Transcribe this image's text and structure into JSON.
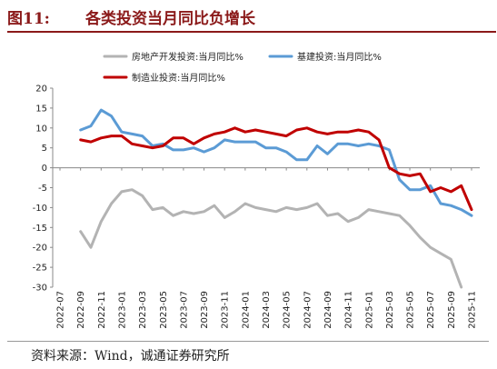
{
  "figure": {
    "number": "图11:",
    "title": "各类投资当月同比负增长",
    "source": "资料来源：Wind，诚通证券研究所"
  },
  "chart_data": {
    "type": "line",
    "title": "各类投资当月同比负增长",
    "xlabel": "",
    "ylabel": "",
    "ylim": [
      -30,
      20
    ],
    "yticks": [
      -30,
      -25,
      -20,
      -15,
      -10,
      -5,
      0,
      5,
      10,
      15,
      20
    ],
    "xticks": [
      "2022-07",
      "2022-09",
      "2022-11",
      "2023-01",
      "2023-03",
      "2023-05",
      "2023-07",
      "2023-09",
      "2023-11",
      "2024-01",
      "2024-03",
      "2024-05",
      "2024-07",
      "2024-09",
      "2024-11",
      "2025-01",
      "2025-03",
      "2025-05",
      "2025-07",
      "2025-09",
      "2025-11"
    ],
    "x": [
      "2022-09",
      "2022-10",
      "2022-11",
      "2022-12",
      "2023-01",
      "2023-02",
      "2023-03",
      "2023-04",
      "2023-05",
      "2023-06",
      "2023-07",
      "2023-08",
      "2023-09",
      "2023-10",
      "2023-11",
      "2023-12",
      "2024-01",
      "2024-02",
      "2024-03",
      "2024-04",
      "2024-05",
      "2024-06",
      "2024-07",
      "2024-08",
      "2024-09",
      "2024-10",
      "2024-11",
      "2024-12",
      "2025-01",
      "2025-02",
      "2025-03",
      "2025-04",
      "2025-05",
      "2025-06",
      "2025-07",
      "2025-08",
      "2025-09",
      "2025-10",
      "2025-11"
    ],
    "grid": false,
    "legend_position": "top",
    "series": [
      {
        "name": "房地产开发投资:当月同比%",
        "color": "#b3b3b3",
        "values": [
          -16.0,
          -20.0,
          -13.5,
          -9.0,
          -6.0,
          -5.5,
          -7.0,
          -10.5,
          -10.0,
          -12.0,
          -11.0,
          -11.5,
          -11.0,
          -9.5,
          -12.5,
          -11.0,
          -9.0,
          -10.0,
          -10.5,
          -11.0,
          -10.0,
          -10.5,
          -10.0,
          -9.0,
          -12.0,
          -11.5,
          -13.5,
          -12.5,
          -10.5,
          -11.0,
          -11.5,
          -12.0,
          -14.5,
          -17.5,
          -20.0,
          -21.5,
          -23.0,
          -30.0,
          null
        ]
      },
      {
        "name": "基建投资:当月同比%",
        "color": "#5b9bd5",
        "values": [
          9.5,
          10.5,
          14.5,
          13.0,
          9.0,
          8.5,
          8.0,
          5.5,
          6.0,
          4.5,
          4.5,
          5.0,
          4.0,
          5.0,
          7.0,
          6.5,
          6.5,
          6.5,
          5.0,
          5.0,
          4.0,
          2.0,
          2.0,
          5.5,
          3.5,
          6.0,
          6.0,
          5.5,
          6.0,
          5.5,
          4.5,
          -3.0,
          -5.5,
          -5.5,
          -4.5,
          -9.0,
          -9.5,
          -10.5,
          -12.0
        ]
      },
      {
        "name": "制造业投资:当月同比%",
        "color": "#c00000",
        "values": [
          7.0,
          6.5,
          7.5,
          8.0,
          8.0,
          6.0,
          5.5,
          5.0,
          5.5,
          7.5,
          7.5,
          6.0,
          7.5,
          8.5,
          9.0,
          10.0,
          9.0,
          9.5,
          9.0,
          8.5,
          8.0,
          9.5,
          10.0,
          9.0,
          8.5,
          9.0,
          9.0,
          9.5,
          9.0,
          7.0,
          0.0,
          -1.5,
          -2.0,
          -1.5,
          -6.0,
          -5.0,
          -6.0,
          -4.5,
          -10.5
        ]
      }
    ]
  }
}
